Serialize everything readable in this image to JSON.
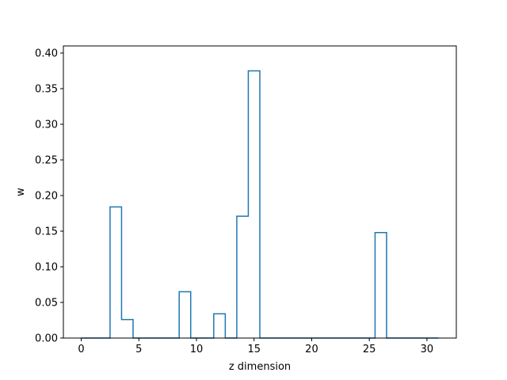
{
  "chart_data": {
    "type": "line",
    "style": "step",
    "title": "",
    "xlabel": "z dimension",
    "ylabel": "w",
    "xlim": [
      -1.55,
      32.55
    ],
    "ylim": [
      0,
      0.41
    ],
    "x_ticks": [
      0,
      5,
      10,
      15,
      20,
      25,
      30
    ],
    "x_tick_labels": [
      "0",
      "5",
      "10",
      "15",
      "20",
      "25",
      "30"
    ],
    "y_ticks": [
      0,
      0.05,
      0.1,
      0.15,
      0.2,
      0.25,
      0.3,
      0.35,
      0.4
    ],
    "y_tick_labels": [
      "0.00",
      "0.05",
      "0.10",
      "0.15",
      "0.20",
      "0.25",
      "0.30",
      "0.35",
      "0.40"
    ],
    "grid": false,
    "line_color": "#1f77b4",
    "series": [
      {
        "x": [
          0,
          1,
          2,
          3,
          4,
          5,
          6,
          7,
          8,
          9,
          10,
          11,
          12,
          13,
          14,
          15,
          16,
          17,
          18,
          19,
          20,
          21,
          22,
          23,
          24,
          25,
          26,
          27,
          28,
          29,
          30,
          31
        ],
        "values": [
          0,
          0,
          0,
          0.184,
          0.026,
          0,
          0,
          0,
          0,
          0.065,
          0,
          0,
          0.034,
          0,
          0.171,
          0.375,
          0,
          0,
          0,
          0,
          0,
          0,
          0,
          0,
          0,
          0,
          0.148,
          0,
          0,
          0,
          0,
          0
        ]
      }
    ]
  }
}
